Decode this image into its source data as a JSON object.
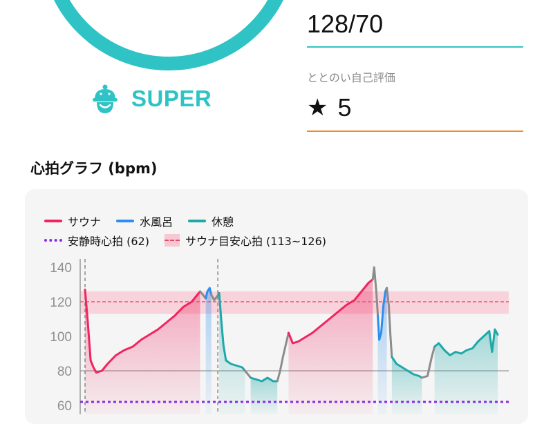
{
  "summary": {
    "level_label": "SUPER",
    "blood_pressure": "128/70",
    "score_label": "ととのい自己評価",
    "score_star": "★",
    "score_value": "5"
  },
  "section_title": "心拍グラフ (bpm)",
  "legend": {
    "sauna": "サウナ",
    "water": "水風呂",
    "rest": "休憩",
    "resting": "安静時心拍 (62)",
    "target": "サウナ目安心拍 (113~126)"
  },
  "colors": {
    "accent": "#2fc3c5",
    "sauna": "#f0245e",
    "water": "#2b8ef0",
    "rest": "#1ea8a8",
    "transition": "#8c8c8c",
    "resting": "#8a2be2",
    "target_band": "#f8c7d2",
    "score_underline": "#f08a2a"
  },
  "chart_data": {
    "type": "line",
    "y_ticks": [
      "140",
      "120",
      "100",
      "80",
      "60"
    ],
    "ylim": [
      58,
      144
    ],
    "x_range": [
      0,
      100
    ],
    "resting_hr": 62,
    "target_band": [
      113,
      126
    ],
    "target_line": 120,
    "set_boundaries": [
      2,
      49.3
    ],
    "segments": [
      {
        "kind": "sauna",
        "points": [
          [
            2,
            127
          ],
          [
            3,
            108
          ],
          [
            4,
            86
          ],
          [
            5,
            82
          ],
          [
            6,
            79
          ],
          [
            8,
            80
          ],
          [
            10,
            84
          ],
          [
            13,
            89
          ],
          [
            16,
            92
          ],
          [
            19,
            94
          ],
          [
            22,
            98
          ],
          [
            25,
            101
          ],
          [
            28,
            104
          ],
          [
            31,
            108
          ],
          [
            34,
            112
          ],
          [
            37,
            117
          ],
          [
            40,
            120
          ],
          [
            42.5,
            125
          ],
          [
            43,
            126
          ]
        ]
      },
      {
        "kind": "transition",
        "points": [
          [
            43,
            126
          ],
          [
            44,
            124
          ],
          [
            45,
            122
          ]
        ]
      },
      {
        "kind": "water",
        "points": [
          [
            45,
            122
          ],
          [
            45.6,
            126
          ],
          [
            46.4,
            128
          ],
          [
            47,
            124
          ]
        ]
      },
      {
        "kind": "transition",
        "points": [
          [
            47,
            124
          ],
          [
            48,
            121
          ],
          [
            49,
            123
          ],
          [
            49.8,
            125
          ]
        ]
      },
      {
        "kind": "rest",
        "points": [
          [
            49.8,
            125
          ],
          [
            50.5,
            110
          ],
          [
            51.3,
            95
          ],
          [
            52.2,
            86
          ],
          [
            54,
            84
          ],
          [
            56,
            83
          ],
          [
            58,
            82
          ],
          [
            59,
            80
          ]
        ]
      },
      {
        "kind": "transition",
        "points": [
          [
            59,
            80
          ],
          [
            60,
            78
          ],
          [
            61,
            76
          ]
        ]
      },
      {
        "kind": "rest",
        "points": [
          [
            61,
            76
          ],
          [
            63,
            75
          ],
          [
            65,
            74
          ],
          [
            67,
            76
          ],
          [
            69,
            74
          ],
          [
            70.5,
            74
          ]
        ]
      },
      {
        "kind": "transition",
        "points": [
          [
            70.5,
            74
          ],
          [
            71.5,
            80
          ],
          [
            72.5,
            88
          ],
          [
            73.5,
            95
          ],
          [
            74.5,
            102
          ]
        ]
      },
      {
        "kind": "sauna",
        "points": [
          [
            74.5,
            102
          ],
          [
            76,
            96
          ],
          [
            78,
            97
          ],
          [
            80,
            99
          ],
          [
            83,
            102
          ],
          [
            86,
            106
          ],
          [
            89,
            110
          ],
          [
            92,
            114
          ],
          [
            95,
            118
          ],
          [
            98,
            121
          ],
          [
            101,
            127
          ],
          [
            103,
            131
          ],
          [
            104.5,
            133
          ]
        ]
      },
      {
        "kind": "transition",
        "points": [
          [
            104.5,
            133
          ],
          [
            105,
            140
          ],
          [
            105.8,
            125
          ],
          [
            106.3,
            112
          ]
        ]
      },
      {
        "kind": "water",
        "points": [
          [
            106.3,
            112
          ],
          [
            106.8,
            98
          ],
          [
            107.5,
            102
          ],
          [
            108.3,
            118
          ],
          [
            109,
            126
          ],
          [
            109.5,
            128
          ]
        ]
      },
      {
        "kind": "transition",
        "points": [
          [
            109.5,
            128
          ],
          [
            110.2,
            118
          ],
          [
            110.8,
            100
          ],
          [
            111.3,
            88
          ]
        ]
      },
      {
        "kind": "rest",
        "points": [
          [
            111.3,
            88
          ],
          [
            113,
            84
          ],
          [
            115,
            82
          ],
          [
            117,
            80
          ],
          [
            119,
            78
          ],
          [
            121,
            77
          ],
          [
            122,
            76
          ]
        ]
      },
      {
        "kind": "transition",
        "points": [
          [
            122,
            76
          ],
          [
            124,
            77
          ],
          [
            125.5,
            88
          ],
          [
            126.5,
            94
          ]
        ]
      },
      {
        "kind": "rest",
        "points": [
          [
            126.5,
            94
          ],
          [
            128,
            96
          ],
          [
            130,
            92
          ],
          [
            132,
            89
          ],
          [
            134,
            91
          ],
          [
            136,
            90
          ],
          [
            138,
            92
          ],
          [
            140,
            93
          ],
          [
            142,
            97
          ],
          [
            144,
            100
          ],
          [
            146,
            103
          ],
          [
            147,
            91
          ],
          [
            148,
            104
          ],
          [
            149,
            101
          ]
        ]
      }
    ]
  }
}
